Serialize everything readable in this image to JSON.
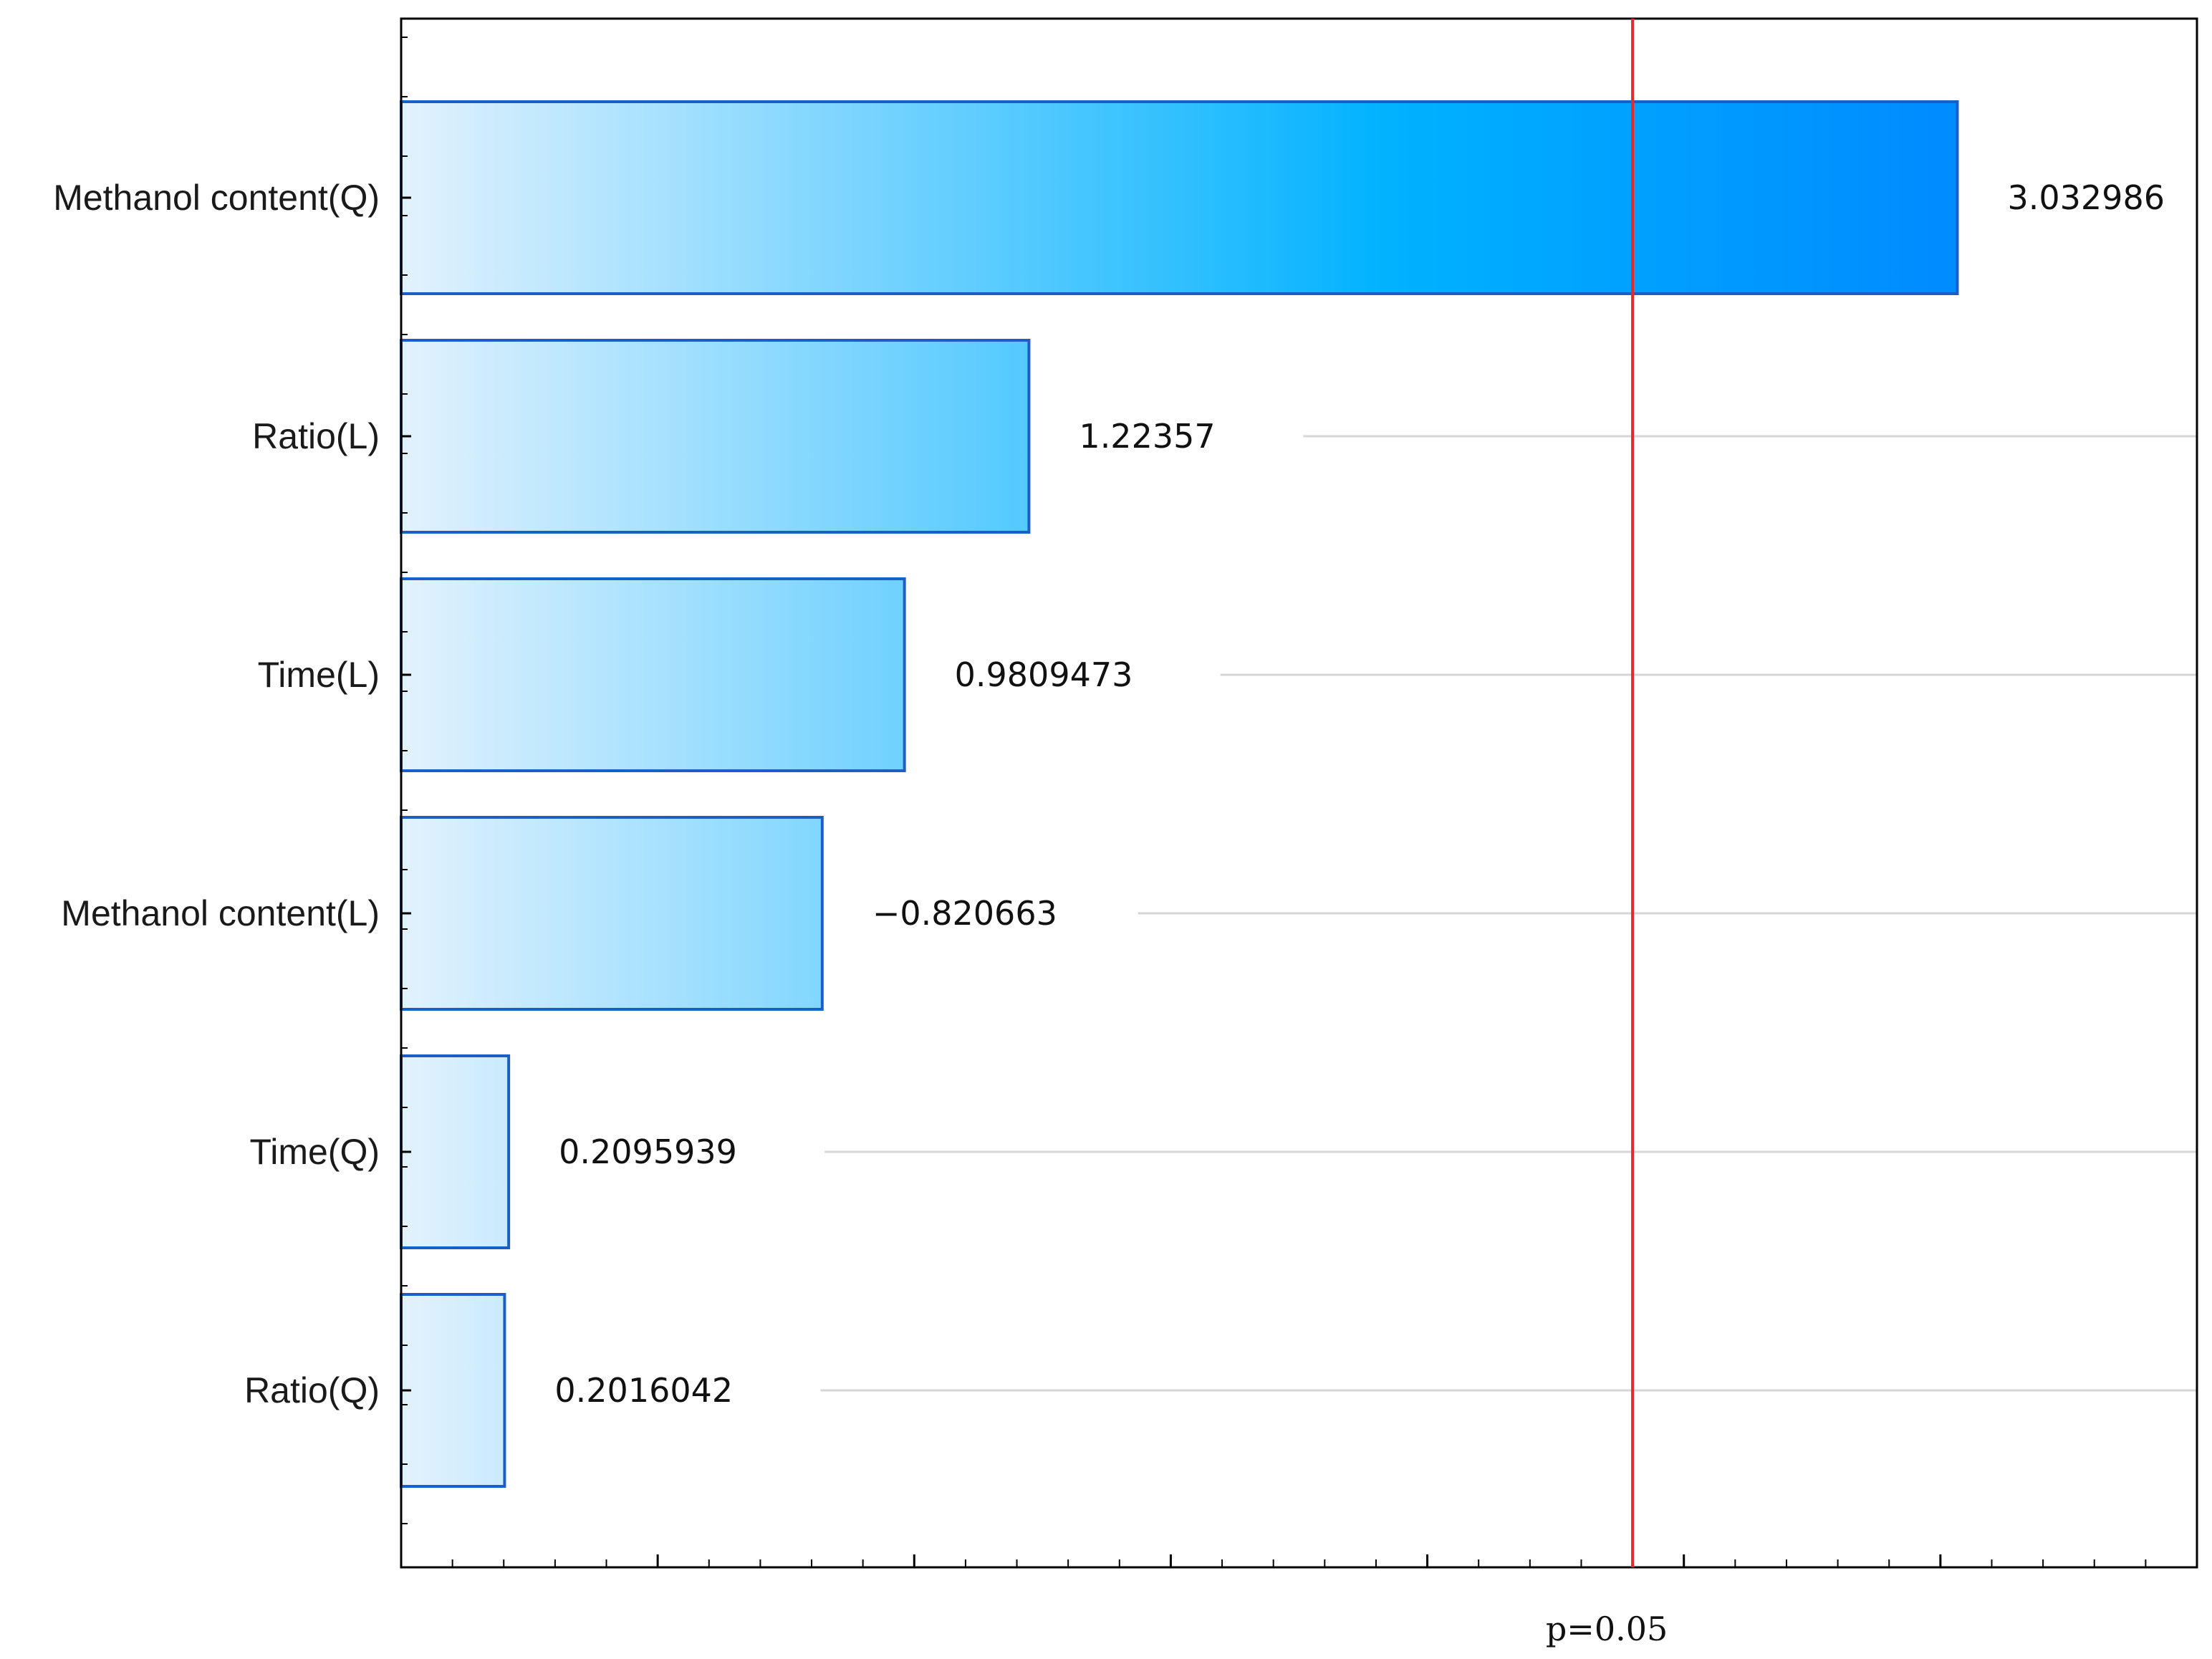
{
  "chart_data": {
    "type": "bar",
    "orientation": "horizontal",
    "title": "",
    "xlabel": "",
    "ylabel": "",
    "categories": [
      "Methanol content(Q)",
      "Ratio(L)",
      "Time(L)",
      "Methanol content(L)",
      "Time(Q)",
      "Ratio(Q)"
    ],
    "values": [
      3.032986,
      1.22357,
      0.9809473,
      -0.820663,
      0.2095939,
      0.2016042
    ],
    "value_labels": [
      "3.032986",
      "1.22357",
      "0.9809473",
      "−0.820663",
      "0.2095939",
      "0.2016042"
    ],
    "xlim": [
      0,
      3.5
    ],
    "reference_line": {
      "value": 2.4,
      "label": "p=0.05",
      "color": "#e8282c"
    },
    "bar_fill_light": "#e2f2fd",
    "bar_fill_mid": "#00b2ff",
    "bar_fill_dark": "#0088ff",
    "bar_border": "#1a5fc8",
    "gridlines": "horizontal",
    "legend": "none"
  }
}
